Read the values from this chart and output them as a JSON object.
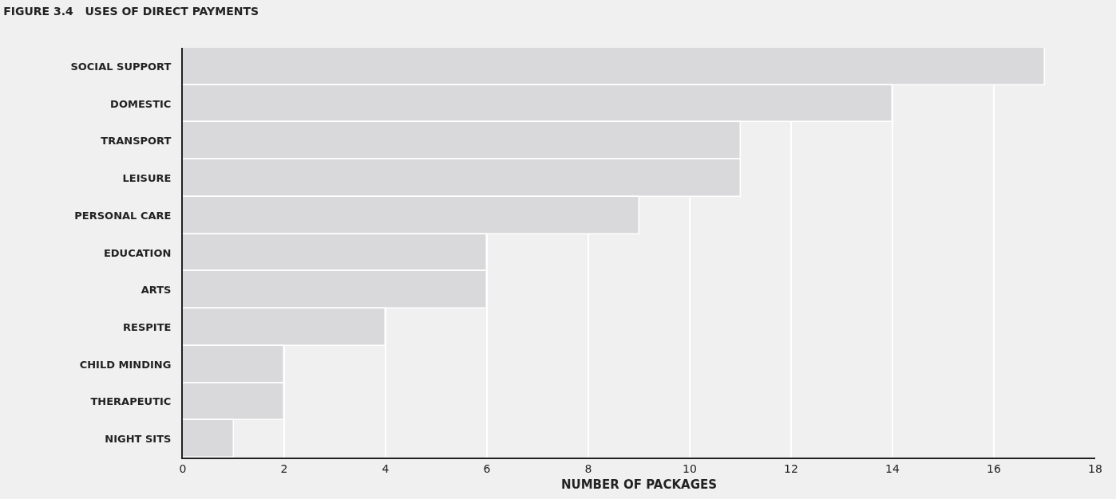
{
  "chart_data": {
    "type": "bar",
    "orientation": "horizontal",
    "title": "FIGURE 3.4   USES OF DIRECT PAYMENTS",
    "xlabel": "NUMBER OF PACKAGES",
    "categories": [
      "SOCIAL SUPPORT",
      "DOMESTIC",
      "TRANSPORT",
      "LEISURE",
      "PERSONAL CARE",
      "EDUCATION",
      "ARTS",
      "RESPITE",
      "CHILD MINDING",
      "THERAPEUTIC",
      "NIGHT SITS"
    ],
    "values": [
      17,
      14,
      11,
      11,
      9,
      6,
      6,
      4,
      2,
      2,
      1
    ],
    "color": "#d9d9db",
    "xlim": [
      0,
      18
    ],
    "xticks": [
      0,
      2,
      4,
      6,
      8,
      10,
      12,
      14,
      16,
      18
    ],
    "grid": "x",
    "legend": false
  }
}
